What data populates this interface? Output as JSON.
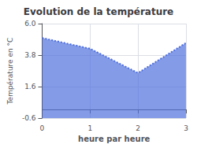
{
  "chart_data": {
    "type": "area",
    "title": "Evolution de la température",
    "xlabel": "heure par heure",
    "ylabel": "Température en °C",
    "x": [
      0,
      1,
      2,
      3
    ],
    "values": [
      5.0,
      4.25,
      2.55,
      4.65
    ],
    "xlim": [
      0,
      3
    ],
    "xticks": [
      0,
      1,
      2,
      3
    ],
    "ylim": [
      -0.6,
      6.0
    ],
    "yticks": [
      -0.6,
      1.6,
      3.8,
      {
        "value": 6.0,
        "label": "6.0"
      }
    ],
    "line_style": "dotted",
    "grid": true
  }
}
